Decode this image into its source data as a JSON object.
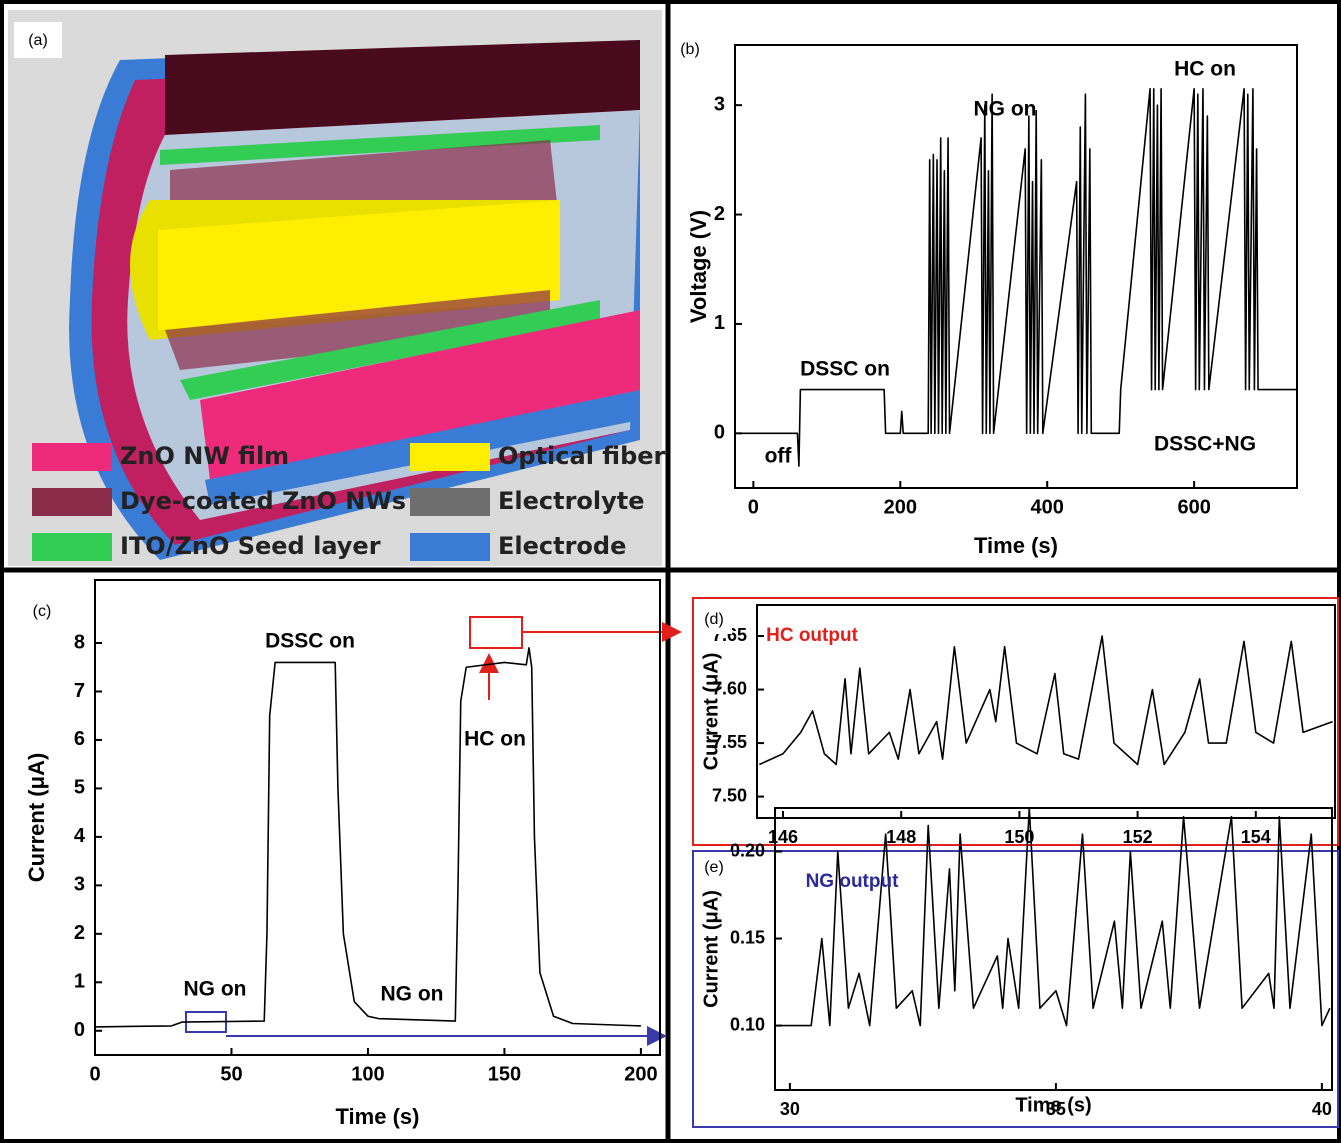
{
  "panel_a": {
    "panel_label": "(a)",
    "legend": [
      {
        "label": "ZnO NW film",
        "color": "#ee2a7b"
      },
      {
        "label": "Dye-coated ZnO NWs",
        "color": "#8b2c4a"
      },
      {
        "label": "ITO/ZnO Seed layer",
        "color": "#33cc55"
      },
      {
        "label": "Optical fiber",
        "color": "#ffee00"
      },
      {
        "label": "Electrolyte",
        "color": "#6e6e6e"
      },
      {
        "label": "Electrode",
        "color": "#3a7bd5"
      }
    ]
  },
  "chart_data": [
    {
      "type": "line",
      "panel_label": "(b)",
      "x_label": "Time (s)",
      "y_label": "Voltage (V)",
      "xlim": [
        -25,
        740
      ],
      "ylim": [
        -0.5,
        3.55
      ],
      "xticks": [
        0,
        200,
        400,
        600
      ],
      "yticks": [
        0,
        1,
        2,
        3
      ],
      "annotations": [
        "off",
        "DSSC on",
        "NG on",
        "HC on",
        "DSSC+NG"
      ],
      "annotation_color": "#000000",
      "x": [
        -25,
        60,
        62,
        64,
        178,
        180,
        200,
        202,
        204,
        238,
        240,
        242,
        245,
        247,
        250,
        252,
        255,
        257,
        260,
        262,
        265,
        267,
        310,
        312,
        315,
        317,
        320,
        322,
        325,
        327,
        370,
        372,
        375,
        377,
        380,
        382,
        385,
        387,
        392,
        394,
        440,
        442,
        445,
        447,
        452,
        454,
        458,
        460,
        498,
        500,
        540,
        542,
        545,
        547,
        550,
        552,
        555,
        557,
        600,
        602,
        605,
        607,
        612,
        614,
        618,
        620,
        668,
        670,
        673,
        675,
        680,
        682,
        685,
        687,
        740
      ],
      "series": [
        {
          "color": "#000000",
          "values": [
            0,
            0,
            -0.3,
            0.4,
            0.4,
            0,
            0,
            0.2,
            0,
            0,
            2.5,
            0,
            2.55,
            0,
            2.5,
            0,
            2.7,
            0,
            2.4,
            0,
            2.7,
            0,
            2.7,
            0,
            3.0,
            0,
            2.4,
            0,
            3.1,
            0,
            2.6,
            0,
            2.9,
            0,
            2.3,
            0,
            2.95,
            0,
            2.5,
            0,
            2.3,
            0,
            2.8,
            0,
            3.1,
            0,
            2.6,
            0,
            0,
            0.4,
            3.15,
            0.4,
            3.15,
            0.4,
            3.0,
            0.4,
            3.15,
            0.4,
            3.15,
            0.4,
            3.1,
            0.4,
            3.15,
            0.4,
            2.9,
            0.4,
            3.15,
            0.4,
            3.1,
            0.4,
            3.15,
            0.4,
            2.6,
            0.4,
            0.4
          ]
        }
      ]
    },
    {
      "type": "line",
      "panel_label": "(c)",
      "x_label": "Time (s)",
      "y_label": "Current (μA)",
      "xlim": [
        0,
        207
      ],
      "ylim": [
        -0.5,
        9.3
      ],
      "xticks": [
        0,
        50,
        100,
        150,
        200
      ],
      "yticks": [
        0,
        1,
        2,
        3,
        4,
        5,
        6,
        7,
        8
      ],
      "annotations": [
        "DSSC on",
        "NG on",
        "NG on",
        "HC on"
      ],
      "annotation_color": "#000000",
      "x": [
        0,
        28,
        32,
        62,
        63,
        64,
        66,
        88,
        89,
        91,
        95,
        100,
        104,
        132,
        133,
        134,
        136,
        150,
        158,
        159,
        160,
        161,
        163,
        168,
        175,
        200
      ],
      "series": [
        {
          "color": "#000000",
          "values": [
            0.08,
            0.1,
            0.18,
            0.2,
            2,
            6.5,
            7.6,
            7.6,
            5,
            2,
            0.6,
            0.3,
            0.25,
            0.2,
            3,
            6.8,
            7.5,
            7.6,
            7.55,
            7.9,
            7.5,
            4,
            1.2,
            0.3,
            0.15,
            0.1
          ]
        }
      ]
    },
    {
      "type": "line",
      "panel_label": "(d)",
      "y_label": "Current (μA)",
      "xlim": [
        145.56,
        155.34
      ],
      "ylim": [
        7.48,
        7.679
      ],
      "xticks": [
        146,
        148,
        150,
        152,
        154
      ],
      "yticks": [
        {
          "value": 7.5,
          "label": "7.50"
        },
        7.55,
        {
          "value": 7.6,
          "label": "7.60"
        },
        7.65
      ],
      "annotations": [
        "HC output"
      ],
      "annotation_color": "#e0201b",
      "x": [
        145.6,
        146.0,
        146.3,
        146.5,
        146.7,
        146.9,
        147.05,
        147.15,
        147.3,
        147.45,
        147.8,
        147.95,
        148.15,
        148.3,
        148.6,
        148.7,
        148.9,
        149.1,
        149.5,
        149.6,
        149.75,
        149.95,
        150.3,
        150.6,
        150.75,
        151.0,
        151.4,
        151.6,
        152.0,
        152.25,
        152.45,
        152.8,
        153.05,
        153.2,
        153.5,
        153.8,
        154.0,
        154.3,
        154.6,
        154.8,
        155.3
      ],
      "series": [
        {
          "color": "#000000",
          "values": [
            7.53,
            7.54,
            7.56,
            7.58,
            7.54,
            7.53,
            7.61,
            7.54,
            7.62,
            7.54,
            7.56,
            7.535,
            7.6,
            7.54,
            7.57,
            7.535,
            7.64,
            7.55,
            7.6,
            7.57,
            7.64,
            7.55,
            7.54,
            7.615,
            7.54,
            7.535,
            7.65,
            7.55,
            7.53,
            7.6,
            7.53,
            7.56,
            7.61,
            7.55,
            7.55,
            7.645,
            7.56,
            7.55,
            7.645,
            7.56,
            7.57
          ]
        }
      ]
    },
    {
      "type": "line",
      "panel_label": "(e)",
      "x_label": "Time (s)",
      "y_label": "Current (μA)",
      "xlim": [
        29.72,
        40.19
      ],
      "ylim": [
        0.063,
        0.225
      ],
      "xticks": [
        30,
        35,
        40
      ],
      "yticks": [
        {
          "value": 0.1,
          "label": "0.10"
        },
        0.15,
        {
          "value": 0.2,
          "label": "0.20"
        }
      ],
      "annotations": [
        "NG output"
      ],
      "annotation_color": "#2a2a9a",
      "x": [
        29.75,
        30.4,
        30.6,
        30.75,
        30.9,
        31.1,
        31.3,
        31.5,
        31.8,
        32.0,
        32.3,
        32.45,
        32.6,
        32.8,
        33.0,
        33.1,
        33.2,
        33.45,
        33.9,
        34.0,
        34.1,
        34.3,
        34.5,
        34.7,
        35.0,
        35.2,
        35.5,
        35.7,
        36.1,
        36.25,
        36.4,
        36.6,
        37.0,
        37.15,
        37.4,
        37.7,
        38.3,
        38.5,
        39.0,
        39.1,
        39.2,
        39.4,
        39.8,
        40.0,
        40.15
      ],
      "series": [
        {
          "color": "#000000",
          "values": [
            0.1,
            0.1,
            0.15,
            0.1,
            0.2,
            0.11,
            0.13,
            0.1,
            0.21,
            0.11,
            0.12,
            0.1,
            0.215,
            0.11,
            0.19,
            0.12,
            0.21,
            0.11,
            0.14,
            0.11,
            0.15,
            0.11,
            0.225,
            0.11,
            0.12,
            0.1,
            0.21,
            0.11,
            0.16,
            0.11,
            0.2,
            0.11,
            0.16,
            0.11,
            0.22,
            0.11,
            0.22,
            0.11,
            0.13,
            0.11,
            0.22,
            0.11,
            0.21,
            0.1,
            0.11
          ]
        }
      ]
    }
  ]
}
